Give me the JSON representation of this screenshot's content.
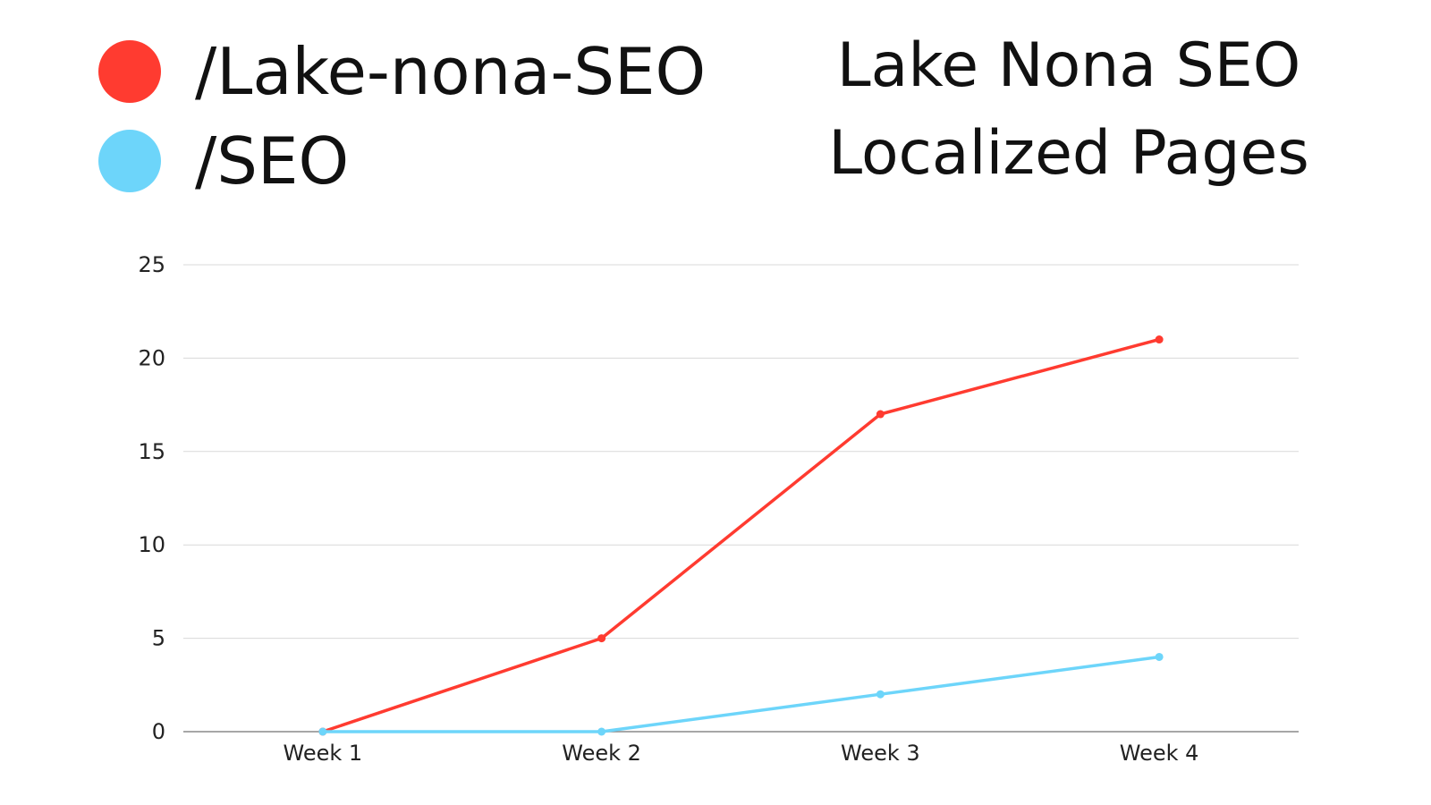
{
  "chart_data": {
    "type": "line",
    "title": [
      "Lake Nona SEO",
      "Localized Pages"
    ],
    "categories": [
      "Week 1",
      "Week 2",
      "Week 3",
      "Week 4"
    ],
    "series": [
      {
        "name": "/Lake-nona-SEO",
        "color": "#ff3b30",
        "values": [
          0,
          5,
          17,
          21
        ]
      },
      {
        "name": "/SEO",
        "color": "#6dd5fa",
        "values": [
          0,
          0,
          2,
          4
        ]
      }
    ],
    "y_ticks": [
      "0",
      "5",
      "10",
      "15",
      "20",
      "25"
    ],
    "ylim": [
      0,
      25
    ],
    "grid": true,
    "legend_position": "top-left",
    "xlabel": "",
    "ylabel": ""
  }
}
